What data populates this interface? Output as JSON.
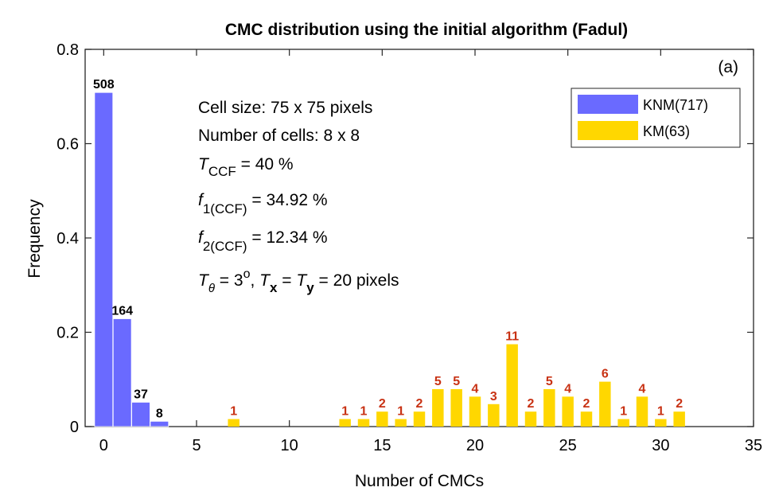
{
  "chart_data": {
    "type": "bar",
    "title": "CMC distribution using the initial algorithm (Fadul)",
    "xlabel": "Number of CMCs",
    "ylabel": "Frequency",
    "panel_label": "(a)",
    "xlim": [
      -1,
      35
    ],
    "ylim": [
      0,
      0.8
    ],
    "xticks": [
      0,
      5,
      10,
      15,
      20,
      25,
      30,
      35
    ],
    "yticks": [
      0,
      0.2,
      0.4,
      0.6,
      0.8
    ],
    "series": [
      {
        "name": "KNM(717)",
        "color": "#6a6aff",
        "label_color": "#000000",
        "x": [
          0,
          1,
          2,
          3
        ],
        "values": [
          0.7085,
          0.2287,
          0.0516,
          0.0112
        ],
        "counts": [
          508,
          164,
          37,
          8
        ]
      },
      {
        "name": "KM(63)",
        "color": "#ffd700",
        "label_color": "#c83214",
        "x": [
          7,
          13,
          14,
          15,
          16,
          17,
          18,
          19,
          20,
          21,
          22,
          23,
          24,
          25,
          26,
          27,
          28,
          29,
          30,
          31
        ],
        "values": [
          0.0159,
          0.0159,
          0.0159,
          0.0317,
          0.0159,
          0.0317,
          0.0794,
          0.0794,
          0.0635,
          0.0476,
          0.1746,
          0.0317,
          0.0794,
          0.0635,
          0.0317,
          0.0952,
          0.0159,
          0.0635,
          0.0159,
          0.0317
        ],
        "counts": [
          1,
          1,
          1,
          2,
          1,
          2,
          5,
          5,
          4,
          3,
          11,
          2,
          5,
          4,
          2,
          6,
          1,
          4,
          1,
          2
        ]
      }
    ],
    "annotations": {
      "cell_size": "Cell size: 75 x 75 pixels",
      "num_cells": "Number of cells: 8 x 8",
      "tccf_sym": "T",
      "tccf_sub": "CCF",
      "tccf_val": " = 40 %",
      "f1_sym": "f",
      "f1_sub": "1(CCF)",
      "f1_val": " = 34.92 %",
      "f2_sym": "f",
      "f2_sub": "2(CCF)",
      "f2_val": " = 12.34 %",
      "theta_sym": "T",
      "theta_sub": "θ",
      "theta_eq": " = 3",
      "theta_sup": "o",
      "theta_sep": ", ",
      "tx_sym": "T",
      "tx_sub": "x",
      "tx_eq": " = ",
      "ty_sym": "T",
      "ty_sub": "y",
      "ty_val": " = 20 pixels"
    }
  }
}
